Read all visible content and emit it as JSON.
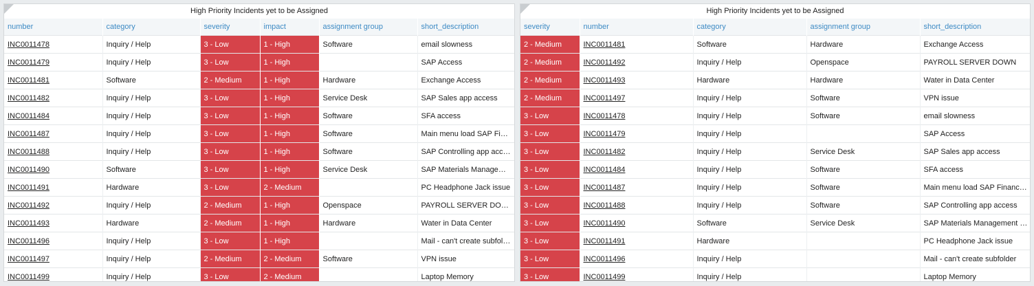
{
  "highlight_color": "#d6434a",
  "panels": [
    {
      "title": "High Priority Incidents yet to be Assigned",
      "columns": [
        {
          "label": "number",
          "link": true
        },
        {
          "label": "category"
        },
        {
          "label": "severity",
          "highlight": true
        },
        {
          "label": "impact",
          "highlight": true
        },
        {
          "label": "assignment group"
        },
        {
          "label": "short_description"
        }
      ],
      "rows": [
        [
          "INC0011478",
          "Inquiry / Help",
          "3 - Low",
          "1 - High",
          "Software",
          "email slowness"
        ],
        [
          "INC0011479",
          "Inquiry / Help",
          "3 - Low",
          "1 - High",
          null,
          "SAP Access"
        ],
        [
          "INC0011481",
          "Software",
          "2 - Medium",
          "1 - High",
          "Hardware",
          "Exchange Access"
        ],
        [
          "INC0011482",
          "Inquiry / Help",
          "3 - Low",
          "1 - High",
          "Service Desk",
          "SAP Sales app access"
        ],
        [
          "INC0011484",
          "Inquiry / Help",
          "3 - Low",
          "1 - High",
          "Software",
          "SFA access"
        ],
        [
          "INC0011487",
          "Inquiry / Help",
          "3 - Low",
          "1 - High",
          "Software",
          "Main menu load SAP Financials"
        ],
        [
          "INC0011488",
          "Inquiry / Help",
          "3 - Low",
          "1 - High",
          "Software",
          "SAP Controlling app access"
        ],
        [
          "INC0011490",
          "Software",
          "3 - Low",
          "1 - High",
          "Service Desk",
          "SAP Materials Management issue"
        ],
        [
          "INC0011491",
          "Hardware",
          "3 - Low",
          "2 - Medium",
          null,
          "PC Headphone Jack issue"
        ],
        [
          "INC0011492",
          "Inquiry / Help",
          "2 - Medium",
          "1 - High",
          "Openspace",
          "PAYROLL SERVER DOWN"
        ],
        [
          "INC0011493",
          "Hardware",
          "2 - Medium",
          "1 - High",
          "Hardware",
          "Water in Data Center"
        ],
        [
          "INC0011496",
          "Inquiry / Help",
          "3 - Low",
          "1 - High",
          null,
          "Mail - can't create subfolder"
        ],
        [
          "INC0011497",
          "Inquiry / Help",
          "2 - Medium",
          "2 - Medium",
          "Software",
          "VPN issue"
        ],
        [
          "INC0011499",
          "Inquiry / Help",
          "3 - Low",
          "2 - Medium",
          null,
          "Laptop Memory"
        ]
      ]
    },
    {
      "title": "High Priority Incidents yet to be Assigned",
      "columns": [
        {
          "label": "severity",
          "highlight": true
        },
        {
          "label": "number",
          "link": true
        },
        {
          "label": "category"
        },
        {
          "label": "assignment group"
        },
        {
          "label": "short_description"
        }
      ],
      "rows": [
        [
          "2 - Medium",
          "INC0011481",
          "Software",
          "Hardware",
          "Exchange Access"
        ],
        [
          "2 - Medium",
          "INC0011492",
          "Inquiry / Help",
          "Openspace",
          "PAYROLL SERVER DOWN"
        ],
        [
          "2 - Medium",
          "INC0011493",
          "Hardware",
          "Hardware",
          "Water in Data Center"
        ],
        [
          "2 - Medium",
          "INC0011497",
          "Inquiry / Help",
          "Software",
          "VPN issue"
        ],
        [
          "3 - Low",
          "INC0011478",
          "Inquiry / Help",
          "Software",
          "email slowness"
        ],
        [
          "3 - Low",
          "INC0011479",
          "Inquiry / Help",
          null,
          "SAP Access"
        ],
        [
          "3 - Low",
          "INC0011482",
          "Inquiry / Help",
          "Service Desk",
          "SAP Sales app access"
        ],
        [
          "3 - Low",
          "INC0011484",
          "Inquiry / Help",
          "Software",
          "SFA access"
        ],
        [
          "3 - Low",
          "INC0011487",
          "Inquiry / Help",
          "Software",
          "Main menu load SAP Financials"
        ],
        [
          "3 - Low",
          "INC0011488",
          "Inquiry / Help",
          "Software",
          "SAP Controlling app access"
        ],
        [
          "3 - Low",
          "INC0011490",
          "Software",
          "Service Desk",
          "SAP Materials Management issue"
        ],
        [
          "3 - Low",
          "INC0011491",
          "Hardware",
          null,
          "PC Headphone Jack issue"
        ],
        [
          "3 - Low",
          "INC0011496",
          "Inquiry / Help",
          null,
          "Mail - can't create subfolder"
        ],
        [
          "3 - Low",
          "INC0011499",
          "Inquiry / Help",
          null,
          "Laptop Memory"
        ]
      ]
    }
  ]
}
